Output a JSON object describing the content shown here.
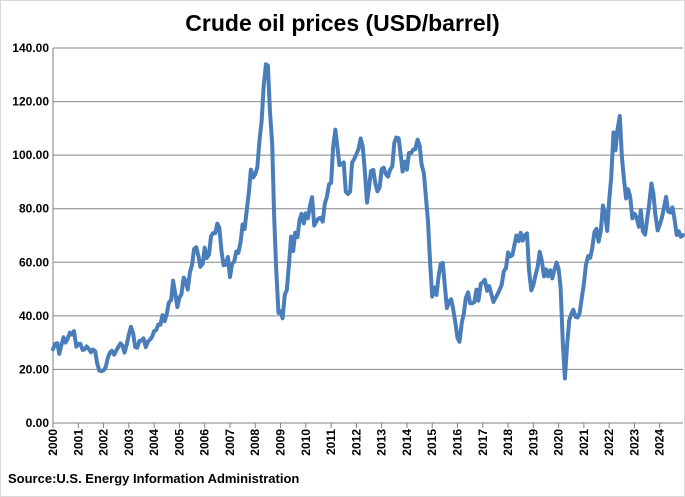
{
  "chart_data": {
    "type": "line",
    "title": "Crude oil prices (USD/barrel)",
    "source": "Source:U.S. Energy Information Administration",
    "xlabel": "",
    "ylabel": "",
    "xlim": [
      2000,
      2024.92
    ],
    "ylim": [
      0,
      140
    ],
    "y_ticks": [
      "0.00",
      "20.00",
      "40.00",
      "60.00",
      "80.00",
      "100.00",
      "120.00",
      "140.00"
    ],
    "x_ticks": [
      "2000",
      "2001",
      "2002",
      "2003",
      "2004",
      "2005",
      "2006",
      "2007",
      "2008",
      "2009",
      "2010",
      "2011",
      "2012",
      "2013",
      "2014",
      "2015",
      "2016",
      "2017",
      "2018",
      "2019",
      "2020",
      "2021",
      "2022",
      "2023",
      "2024"
    ],
    "grid": true,
    "legend": "none",
    "series_color": "#4a7ebb",
    "series": [
      {
        "values": [
          [
            2000.0,
            27.5
          ],
          [
            2000.08,
            29.5
          ],
          [
            2000.17,
            29.8
          ],
          [
            2000.25,
            25.8
          ],
          [
            2000.33,
            29.0
          ],
          [
            2000.42,
            32.0
          ],
          [
            2000.5,
            30.0
          ],
          [
            2000.58,
            31.5
          ],
          [
            2000.67,
            33.8
          ],
          [
            2000.75,
            33.0
          ],
          [
            2000.83,
            34.3
          ],
          [
            2000.92,
            28.5
          ],
          [
            2001.0,
            29.5
          ],
          [
            2001.08,
            29.6
          ],
          [
            2001.17,
            27.3
          ],
          [
            2001.25,
            27.5
          ],
          [
            2001.33,
            28.6
          ],
          [
            2001.42,
            27.6
          ],
          [
            2001.5,
            26.4
          ],
          [
            2001.58,
            27.4
          ],
          [
            2001.67,
            26.8
          ],
          [
            2001.75,
            22.2
          ],
          [
            2001.83,
            19.6
          ],
          [
            2001.92,
            19.3
          ],
          [
            2002.0,
            19.7
          ],
          [
            2002.08,
            20.7
          ],
          [
            2002.17,
            24.4
          ],
          [
            2002.25,
            26.3
          ],
          [
            2002.33,
            27.0
          ],
          [
            2002.42,
            25.5
          ],
          [
            2002.5,
            27.0
          ],
          [
            2002.58,
            28.3
          ],
          [
            2002.67,
            29.7
          ],
          [
            2002.75,
            28.9
          ],
          [
            2002.83,
            26.3
          ],
          [
            2002.92,
            29.4
          ],
          [
            2003.0,
            33.0
          ],
          [
            2003.08,
            35.9
          ],
          [
            2003.17,
            33.5
          ],
          [
            2003.25,
            28.3
          ],
          [
            2003.33,
            28.1
          ],
          [
            2003.42,
            30.7
          ],
          [
            2003.5,
            30.8
          ],
          [
            2003.58,
            31.6
          ],
          [
            2003.67,
            28.3
          ],
          [
            2003.75,
            30.3
          ],
          [
            2003.83,
            31.1
          ],
          [
            2003.92,
            32.2
          ],
          [
            2004.0,
            34.3
          ],
          [
            2004.08,
            34.7
          ],
          [
            2004.17,
            36.8
          ],
          [
            2004.25,
            36.7
          ],
          [
            2004.33,
            40.3
          ],
          [
            2004.42,
            38.0
          ],
          [
            2004.5,
            40.7
          ],
          [
            2004.58,
            44.9
          ],
          [
            2004.67,
            45.9
          ],
          [
            2004.75,
            53.1
          ],
          [
            2004.83,
            48.5
          ],
          [
            2004.92,
            43.3
          ],
          [
            2005.0,
            46.8
          ],
          [
            2005.08,
            48.0
          ],
          [
            2005.17,
            54.3
          ],
          [
            2005.25,
            53.0
          ],
          [
            2005.33,
            49.8
          ],
          [
            2005.42,
            56.4
          ],
          [
            2005.5,
            59.0
          ],
          [
            2005.58,
            65.0
          ],
          [
            2005.67,
            65.6
          ],
          [
            2005.75,
            62.4
          ],
          [
            2005.83,
            58.3
          ],
          [
            2005.92,
            59.4
          ],
          [
            2006.0,
            65.5
          ],
          [
            2006.08,
            61.6
          ],
          [
            2006.17,
            62.9
          ],
          [
            2006.25,
            69.7
          ],
          [
            2006.33,
            70.9
          ],
          [
            2006.42,
            70.9
          ],
          [
            2006.5,
            74.4
          ],
          [
            2006.58,
            73.0
          ],
          [
            2006.67,
            63.8
          ],
          [
            2006.75,
            58.9
          ],
          [
            2006.83,
            59.1
          ],
          [
            2006.92,
            62.0
          ],
          [
            2007.0,
            54.5
          ],
          [
            2007.08,
            59.3
          ],
          [
            2007.17,
            60.4
          ],
          [
            2007.25,
            64.0
          ],
          [
            2007.33,
            63.5
          ],
          [
            2007.42,
            67.5
          ],
          [
            2007.5,
            74.1
          ],
          [
            2007.58,
            72.4
          ],
          [
            2007.67,
            79.9
          ],
          [
            2007.75,
            86.2
          ],
          [
            2007.83,
            94.6
          ],
          [
            2007.92,
            91.7
          ],
          [
            2008.0,
            92.9
          ],
          [
            2008.08,
            95.4
          ],
          [
            2008.17,
            105.5
          ],
          [
            2008.25,
            112.6
          ],
          [
            2008.33,
            125.4
          ],
          [
            2008.42,
            133.9
          ],
          [
            2008.5,
            133.4
          ],
          [
            2008.58,
            116.7
          ],
          [
            2008.67,
            104.1
          ],
          [
            2008.75,
            76.6
          ],
          [
            2008.83,
            57.3
          ],
          [
            2008.92,
            41.1
          ],
          [
            2009.0,
            41.7
          ],
          [
            2009.08,
            39.1
          ],
          [
            2009.17,
            47.9
          ],
          [
            2009.25,
            49.6
          ],
          [
            2009.33,
            59.0
          ],
          [
            2009.42,
            69.6
          ],
          [
            2009.5,
            64.2
          ],
          [
            2009.58,
            71.1
          ],
          [
            2009.67,
            69.4
          ],
          [
            2009.75,
            75.7
          ],
          [
            2009.83,
            78.1
          ],
          [
            2009.92,
            74.5
          ],
          [
            2010.0,
            78.3
          ],
          [
            2010.08,
            76.4
          ],
          [
            2010.17,
            81.2
          ],
          [
            2010.25,
            84.3
          ],
          [
            2010.33,
            73.7
          ],
          [
            2010.42,
            75.3
          ],
          [
            2010.5,
            76.3
          ],
          [
            2010.58,
            76.6
          ],
          [
            2010.67,
            75.2
          ],
          [
            2010.75,
            81.9
          ],
          [
            2010.83,
            84.3
          ],
          [
            2010.92,
            89.2
          ],
          [
            2011.0,
            89.6
          ],
          [
            2011.08,
            102.9
          ],
          [
            2011.17,
            109.5
          ],
          [
            2011.25,
            103.0
          ],
          [
            2011.33,
            96.3
          ],
          [
            2011.42,
            96.7
          ],
          [
            2011.5,
            97.3
          ],
          [
            2011.58,
            86.3
          ],
          [
            2011.67,
            85.5
          ],
          [
            2011.75,
            86.3
          ],
          [
            2011.83,
            97.2
          ],
          [
            2011.92,
            98.6
          ],
          [
            2012.0,
            100.3
          ],
          [
            2012.08,
            102.2
          ],
          [
            2012.17,
            106.2
          ],
          [
            2012.25,
            103.3
          ],
          [
            2012.33,
            94.7
          ],
          [
            2012.42,
            82.3
          ],
          [
            2012.5,
            87.9
          ],
          [
            2012.58,
            94.1
          ],
          [
            2012.67,
            94.5
          ],
          [
            2012.75,
            89.5
          ],
          [
            2012.83,
            86.5
          ],
          [
            2012.92,
            87.9
          ],
          [
            2013.0,
            94.8
          ],
          [
            2013.08,
            95.3
          ],
          [
            2013.17,
            92.9
          ],
          [
            2013.25,
            92.0
          ],
          [
            2013.33,
            94.5
          ],
          [
            2013.42,
            95.8
          ],
          [
            2013.5,
            104.6
          ],
          [
            2013.58,
            106.6
          ],
          [
            2013.67,
            106.3
          ],
          [
            2013.75,
            100.5
          ],
          [
            2013.83,
            93.9
          ],
          [
            2013.92,
            97.6
          ],
          [
            2014.0,
            94.6
          ],
          [
            2014.08,
            100.8
          ],
          [
            2014.17,
            100.8
          ],
          [
            2014.25,
            102.1
          ],
          [
            2014.33,
            102.2
          ],
          [
            2014.42,
            105.8
          ],
          [
            2014.5,
            103.6
          ],
          [
            2014.58,
            96.5
          ],
          [
            2014.67,
            93.2
          ],
          [
            2014.75,
            84.4
          ],
          [
            2014.83,
            75.8
          ],
          [
            2014.92,
            59.3
          ],
          [
            2015.0,
            47.2
          ],
          [
            2015.08,
            50.6
          ],
          [
            2015.17,
            47.8
          ],
          [
            2015.25,
            54.5
          ],
          [
            2015.33,
            59.3
          ],
          [
            2015.42,
            59.8
          ],
          [
            2015.5,
            50.9
          ],
          [
            2015.58,
            42.9
          ],
          [
            2015.67,
            45.5
          ],
          [
            2015.75,
            46.2
          ],
          [
            2015.83,
            42.4
          ],
          [
            2015.92,
            37.2
          ],
          [
            2016.0,
            31.7
          ],
          [
            2016.08,
            30.3
          ],
          [
            2016.17,
            37.5
          ],
          [
            2016.25,
            40.8
          ],
          [
            2016.33,
            46.7
          ],
          [
            2016.42,
            48.8
          ],
          [
            2016.5,
            44.7
          ],
          [
            2016.58,
            44.7
          ],
          [
            2016.67,
            45.2
          ],
          [
            2016.75,
            49.8
          ],
          [
            2016.83,
            45.7
          ],
          [
            2016.92,
            52.0
          ],
          [
            2017.0,
            52.5
          ],
          [
            2017.08,
            53.5
          ],
          [
            2017.17,
            49.3
          ],
          [
            2017.25,
            51.1
          ],
          [
            2017.33,
            48.5
          ],
          [
            2017.42,
            45.2
          ],
          [
            2017.5,
            46.6
          ],
          [
            2017.58,
            48.0
          ],
          [
            2017.67,
            49.8
          ],
          [
            2017.75,
            51.6
          ],
          [
            2017.83,
            56.6
          ],
          [
            2017.92,
            57.9
          ],
          [
            2018.0,
            63.7
          ],
          [
            2018.08,
            62.2
          ],
          [
            2018.17,
            62.7
          ],
          [
            2018.25,
            66.3
          ],
          [
            2018.33,
            70.0
          ],
          [
            2018.42,
            67.9
          ],
          [
            2018.5,
            71.0
          ],
          [
            2018.58,
            68.1
          ],
          [
            2018.67,
            70.2
          ],
          [
            2018.75,
            70.8
          ],
          [
            2018.83,
            57.0
          ],
          [
            2018.92,
            49.5
          ],
          [
            2019.0,
            51.4
          ],
          [
            2019.08,
            55.0
          ],
          [
            2019.17,
            58.2
          ],
          [
            2019.25,
            63.9
          ],
          [
            2019.33,
            60.8
          ],
          [
            2019.42,
            54.7
          ],
          [
            2019.5,
            57.4
          ],
          [
            2019.58,
            54.8
          ],
          [
            2019.67,
            57.0
          ],
          [
            2019.75,
            54.0
          ],
          [
            2019.83,
            57.0
          ],
          [
            2019.92,
            59.9
          ],
          [
            2020.0,
            57.5
          ],
          [
            2020.08,
            50.5
          ],
          [
            2020.17,
            29.2
          ],
          [
            2020.25,
            16.6
          ],
          [
            2020.33,
            28.6
          ],
          [
            2020.42,
            38.3
          ],
          [
            2020.5,
            40.7
          ],
          [
            2020.58,
            42.3
          ],
          [
            2020.67,
            39.6
          ],
          [
            2020.75,
            39.4
          ],
          [
            2020.83,
            41.0
          ],
          [
            2020.92,
            47.0
          ],
          [
            2021.0,
            52.0
          ],
          [
            2021.08,
            59.0
          ],
          [
            2021.17,
            62.3
          ],
          [
            2021.25,
            61.7
          ],
          [
            2021.33,
            65.2
          ],
          [
            2021.42,
            71.4
          ],
          [
            2021.5,
            72.5
          ],
          [
            2021.58,
            67.7
          ],
          [
            2021.67,
            71.6
          ],
          [
            2021.75,
            81.2
          ],
          [
            2021.83,
            78.7
          ],
          [
            2021.92,
            71.7
          ],
          [
            2022.0,
            83.2
          ],
          [
            2022.08,
            91.6
          ],
          [
            2022.17,
            108.5
          ],
          [
            2022.25,
            101.8
          ],
          [
            2022.33,
            109.6
          ],
          [
            2022.42,
            114.6
          ],
          [
            2022.5,
            99.9
          ],
          [
            2022.58,
            91.5
          ],
          [
            2022.67,
            83.8
          ],
          [
            2022.75,
            87.3
          ],
          [
            2022.83,
            84.4
          ],
          [
            2022.92,
            76.4
          ],
          [
            2023.0,
            78.1
          ],
          [
            2023.08,
            76.8
          ],
          [
            2023.17,
            73.3
          ],
          [
            2023.25,
            79.4
          ],
          [
            2023.33,
            71.6
          ],
          [
            2023.42,
            70.3
          ],
          [
            2023.5,
            76.1
          ],
          [
            2023.58,
            81.4
          ],
          [
            2023.67,
            89.4
          ],
          [
            2023.75,
            85.6
          ],
          [
            2023.83,
            77.7
          ],
          [
            2023.92,
            71.9
          ],
          [
            2024.0,
            73.9
          ],
          [
            2024.08,
            76.5
          ],
          [
            2024.17,
            80.4
          ],
          [
            2024.25,
            84.4
          ],
          [
            2024.33,
            79.0
          ],
          [
            2024.42,
            78.6
          ],
          [
            2024.5,
            80.5
          ],
          [
            2024.58,
            76.4
          ],
          [
            2024.67,
            70.2
          ],
          [
            2024.75,
            71.6
          ],
          [
            2024.83,
            69.5
          ],
          [
            2024.92,
            70.1
          ]
        ]
      }
    ]
  }
}
